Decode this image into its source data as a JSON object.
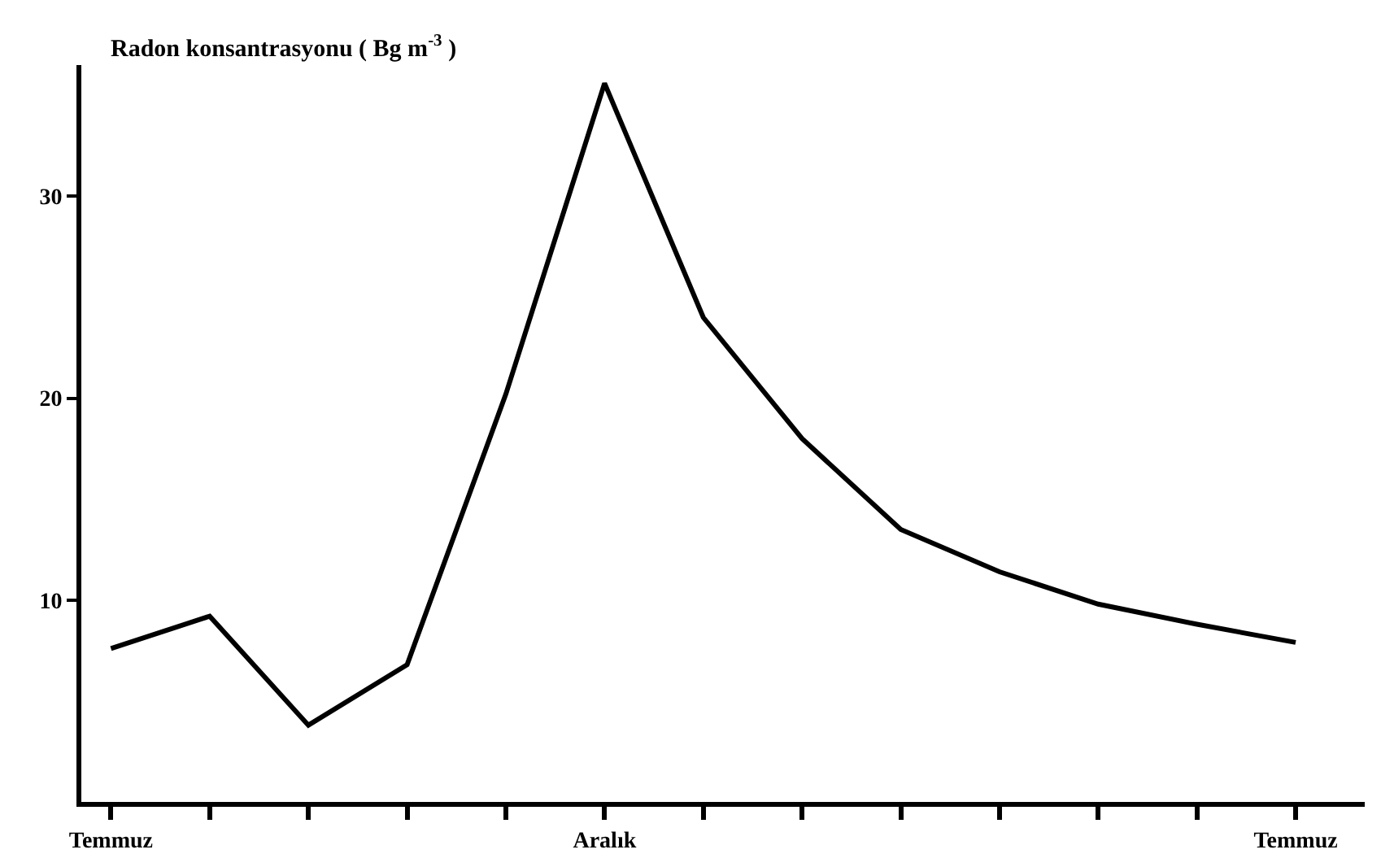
{
  "chart_data": {
    "type": "line",
    "ylabel": "Radon konsantrasyonu ( Bg m$^{-3}$ )",
    "categories": [
      "Temmuz",
      null,
      null,
      null,
      null,
      "Aralık",
      null,
      null,
      null,
      null,
      null,
      null,
      "Temmuz"
    ],
    "series": [
      {
        "color": "#000000",
        "values": [
          7.6,
          9.2,
          3.8,
          6.8,
          20.2,
          35.6,
          24,
          18,
          13.5,
          11.4,
          9.8,
          8.8,
          7.9
        ]
      }
    ],
    "ylim": [
      0,
      36.5
    ],
    "yticks": [
      10,
      20,
      30
    ],
    "grid": false,
    "marker": "none",
    "line_style": "solid"
  }
}
